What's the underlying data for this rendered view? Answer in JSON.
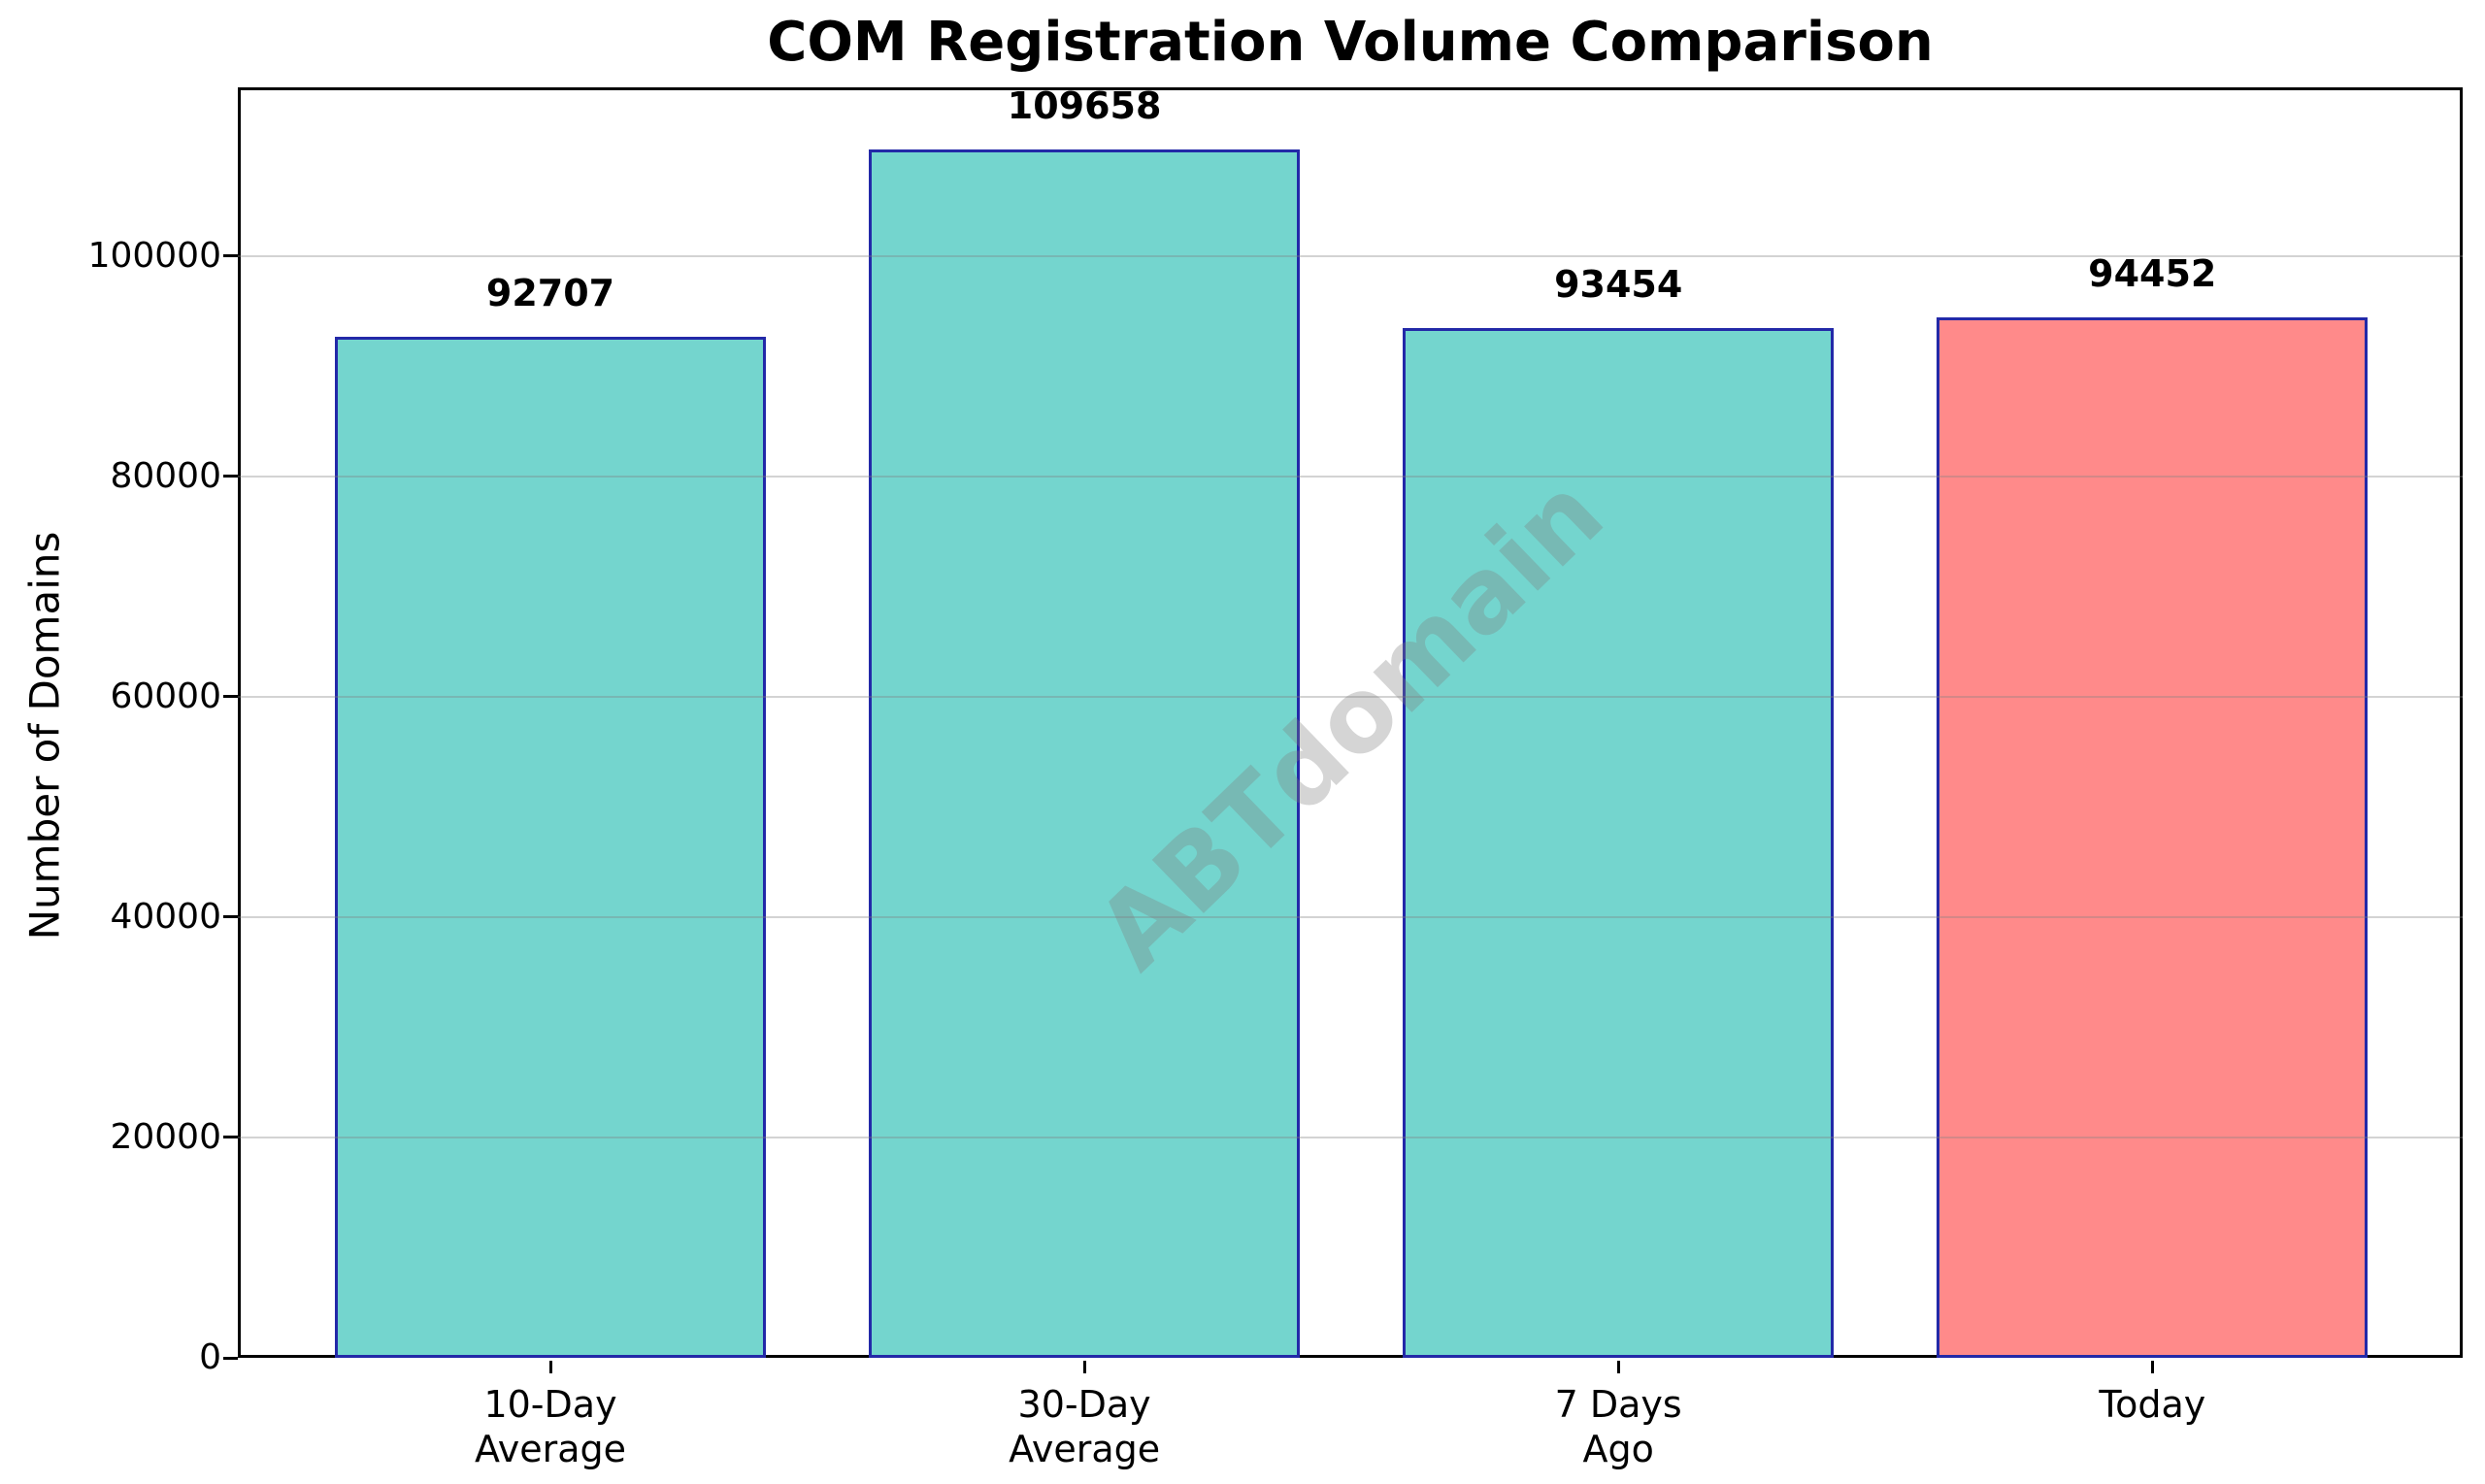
{
  "title": "COM Registration Volume Comparison",
  "watermark": "ABTdomain",
  "chart_data": {
    "type": "bar",
    "title": "COM Registration Volume Comparison",
    "categories": [
      "10-Day\nAverage",
      "30-Day\nAverage",
      "7 Days\nAgo",
      "Today"
    ],
    "values": [
      92707,
      109658,
      93454,
      94452
    ],
    "bar_colors": [
      "#74d5ce",
      "#74d5ce",
      "#74d5ce",
      "#ff8a8a"
    ],
    "bar_edge_color": "#2329a8",
    "xlabel": "",
    "ylabel": "Number of Domains",
    "yticks": [
      0,
      20000,
      40000,
      60000,
      80000,
      100000
    ],
    "ylim": [
      0,
      115330
    ],
    "grid": true,
    "grid_color": "rgba(128,128,128,0.35)",
    "legend_position": "none",
    "watermark": "ABTdomain"
  }
}
